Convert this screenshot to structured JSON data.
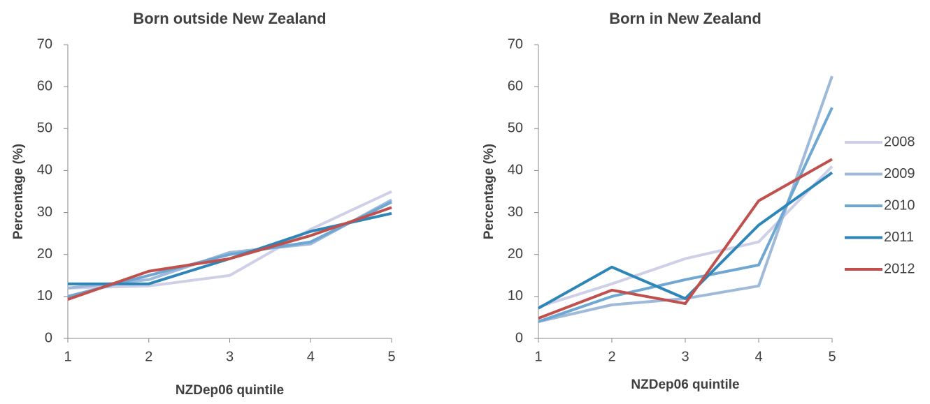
{
  "chart_data": [
    {
      "type": "line",
      "title": "Born outside New Zealand",
      "x_label": "NZDep06 quintile",
      "y_label": "Percentage (%)",
      "x": [
        1,
        2,
        3,
        4,
        5
      ],
      "xlim": [
        1,
        5
      ],
      "xticks": [
        1,
        2,
        3,
        4,
        5
      ],
      "ylim": [
        0,
        70
      ],
      "yticks": [
        0,
        10,
        20,
        30,
        40,
        50,
        60,
        70
      ],
      "legend": false,
      "series": [
        {
          "color": "#cfcfe8",
          "values": [
            12,
            12.5,
            15,
            26,
            35
          ]
        },
        {
          "color": "#9fb9da",
          "values": [
            12,
            14,
            20.5,
            22.5,
            33
          ]
        },
        {
          "color": "#6ea7d2",
          "values": [
            10,
            15,
            20,
            23,
            32.5
          ]
        },
        {
          "color": "#2e86b8",
          "values": [
            13,
            13,
            19,
            25.5,
            29.8
          ]
        },
        {
          "color": "#c0504d",
          "values": [
            9.3,
            16,
            19,
            24.5,
            31.2
          ]
        }
      ]
    },
    {
      "type": "line",
      "title": "Born in New Zealand",
      "x_label": "NZDep06 quintile",
      "y_label": "Percentage (%)",
      "x": [
        1,
        2,
        3,
        4,
        5
      ],
      "xlim": [
        1,
        5
      ],
      "xticks": [
        1,
        2,
        3,
        4,
        5
      ],
      "ylim": [
        0,
        70
      ],
      "yticks": [
        0,
        10,
        20,
        30,
        40,
        50,
        60,
        70
      ],
      "legend": true,
      "series": [
        {
          "name": "2008",
          "color": "#cfcfe8",
          "values": [
            7.5,
            13,
            19,
            23,
            41
          ]
        },
        {
          "name": "2009",
          "color": "#9fb9da",
          "values": [
            4,
            8,
            9.5,
            12.5,
            62.5
          ]
        },
        {
          "name": "2010",
          "color": "#6ea7d2",
          "values": [
            4,
            10,
            14,
            17.5,
            55
          ]
        },
        {
          "name": "2011",
          "color": "#2e86b8",
          "values": [
            7.2,
            17,
            9.5,
            27,
            39.5
          ]
        },
        {
          "name": "2012",
          "color": "#c0504d",
          "values": [
            4.8,
            11.5,
            8.3,
            32.8,
            42.7
          ]
        }
      ]
    }
  ]
}
